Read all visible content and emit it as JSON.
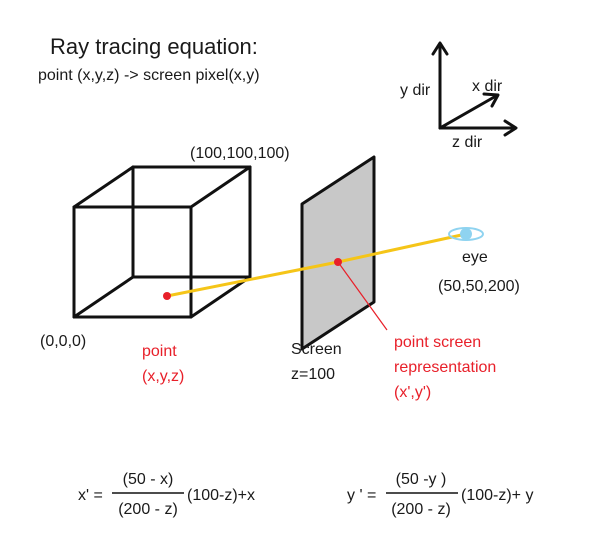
{
  "title": "Ray tracing equation:",
  "subtitle": "point (x,y,z) -> screen pixel(x,y)",
  "axes": {
    "y_label": "y dir",
    "x_label": "x dir",
    "z_label": "z dir"
  },
  "cube": {
    "top_corner_label": "(100,100,100)",
    "origin_label": "(0,0,0)"
  },
  "point": {
    "line1": "point",
    "line2": "(x,y,z)"
  },
  "screen": {
    "line1": "Screen",
    "line2": "z=100"
  },
  "projection": {
    "line1": "point screen",
    "line2": "representation",
    "line3": "(x',y')"
  },
  "eye": {
    "label": "eye",
    "coords": "(50,50,200)"
  },
  "equation_x": {
    "lhs": "x' =",
    "numerator": "(50 - x)",
    "denominator": "(200 - z)",
    "rhs": "(100-z)+x"
  },
  "equation_y": {
    "lhs": "y ' =",
    "numerator": "(50 -y )",
    "denominator": "(200 - z)",
    "rhs": "(100-z)+ y"
  },
  "colors": {
    "ray": "#f5c518",
    "point": "#e8202a",
    "screen_fill": "#c8c8c8",
    "eye": "#8fd3f0",
    "label_red": "#e8202a"
  }
}
